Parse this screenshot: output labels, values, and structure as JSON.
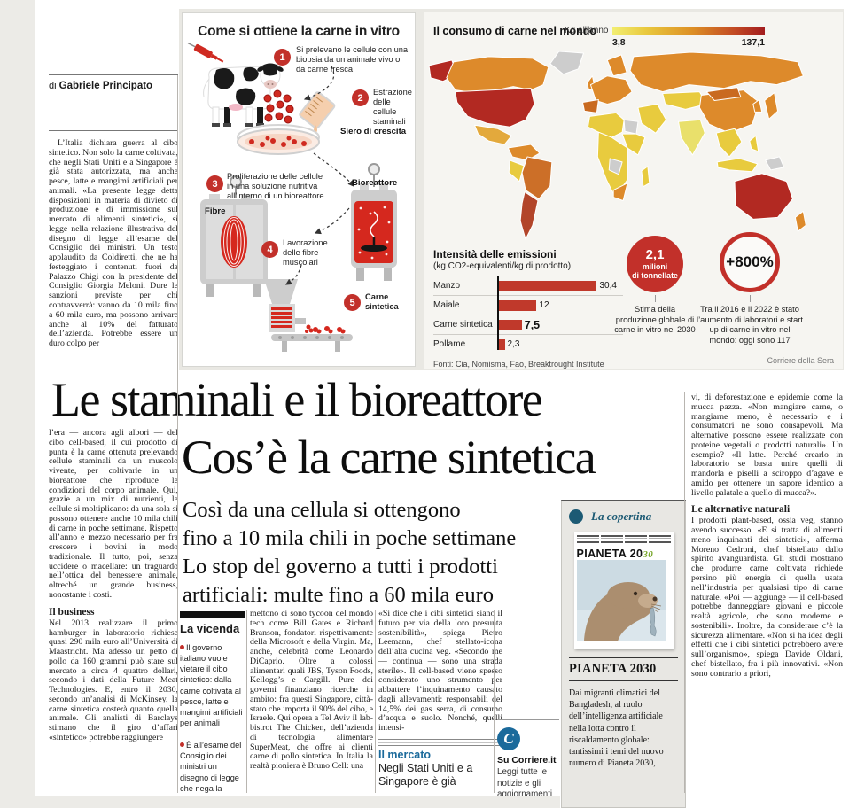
{
  "byline": {
    "prefix": "di ",
    "author": "Gabriele Principato"
  },
  "headline": {
    "line1": "Le staminali e il bioreattore",
    "line2": "Cos’è la carne sintetica"
  },
  "subhead": {
    "lines": [
      "Così da una cellula si ottengono",
      "fino a 10 mila chili in poche settimane",
      "Lo stop del governo a tutti i prodotti",
      "artificiali: multe fino a 60 mila euro"
    ]
  },
  "lead": {
    "text": "L’Italia dichiara guerra al cibo sintetico. Non solo la carne coltivata, che negli Stati Uniti e a Singapore è già stata autorizzata, ma anche pesce, latte e mangimi artificiali per animali. «La presente legge detta disposizioni in materia di divieto di produzione e di immissione sul mercato di alimenti sintetici», si legge nella relazione illustrativa del disegno di legge all’esame del Consiglio dei ministri. Un testo applaudito da Coldiretti, che ne ha festeggiato i contenuti fuori da Palazzo Chigi con la presidente del Consiglio Giorgia Meloni. Dure le sanzioni previste per chi contravverrà: vanno da 10 mila fino a 60 mila euro, ma possono arrivare anche al 10% del fatturato dell’azienda. Potrebbe essere un duro colpo per"
  },
  "columns": {
    "col1b": "l’era — ancora agli albori — del cibo cell-based, il cui prodotto di punta è la carne ottenuta prelevando cellule staminali da un muscolo vivente, per coltivarle in un bioreattore che riproduce le condizioni del corpo animale. Qui, grazie a un mix di nutrienti, le cellule si moltiplicano: da una sola si possono ottenere anche 10 mila chili di carne in poche settimane. Rispetto all’anno e mezzo necessario per fra crescere i bovini in modo tradizionale. Il tutto, poi, senza uccidere o macellare: un traguardo nell’ottica del benessere animale, oltreché un grande business, nonostante i costi.",
    "business_heading": "Il business",
    "business_text": "Nel 2013 realizzare il primo hamburger in laboratorio richiese quasi 290 mila euro all’Università di Maastricht. Ma adesso un petto di pollo da 160 grammi può stare sul mercato a circa 4 quattro dollari, secondo i dati della Future Meat Technologies. E, entro il 2030, secondo un’analisi di McKinsey, la carne sintetica costerà quanto quella animale. Gli analisti di Barclays stimano che il giro d’affari «sintetico» potrebbe raggiungere",
    "col3": "mettono ci sono tycoon del mondo tech come Bill Gates e Richard Branson, fondatori rispettivamente della Microsoft e della Virgin. Ma, anche, celebrità come Leonardo DiCaprio. Oltre a colossi alimentari quali JBS, Tyson Foods, Kellogg’s e Cargill. Pure dei governi finanziano ricerche in ambito: fra questi Singapore, città-stato che importa il 90% del cibo, e Israele. Qui opera a Tel Aviv il lab-bistrot The Chicken, dell’azienda di tecnologia alimentare SuperMeat, che offre ai clienti carne di pollo sintetica. In Italia la realtà pioniera è Bruno Cell: una",
    "col4": "«Si dice che i cibi sintetici siano il futuro per via della loro presunta sostenibilità», spiega Pietro Leemann, chef stellato-icona dell’alta cucina veg. «Secondo me — continua — sono una strada sterile». Il cell-based viene spesso considerato uno strumento per abbattere l’inquinamento causato dagli allevamenti: responsabili del 14,5% dei gas serra, di consumo d’acqua e suolo. Nonché, quelli intensi-",
    "col7a": "vi, di deforestazione e epidemie come la mucca pazza. «Non mangiare carne, o mangiarne meno, è necessario e i consumatori ne sono consapevoli. Ma alternative possono essere realizzate con proteine vegetali o prodotti naturali». Un esempio? «Il latte. Perché crearlo in laboratorio se basta unire quelli di mandorla e piselli a sciroppo d’agave e amido per ottenere un sapore identico a livello palatale a quello di mucca?».",
    "alternatives_heading": "Le alternative naturali",
    "alternatives_text": "I prodotti plant-based, ossia veg, stanno avendo successo. «E si tratta di alimenti meno inquinanti dei sintetici», afferma Moreno Cedroni, chef bistellato dallo spirito avanguardista. Gli studi mostrano che produrre carne coltivata richiede persino più energia di quella usata nell’industria per qualsiasi tipo di carne naturale. «Poi — aggiunge — il cell-based potrebbe danneggiare giovani e piccole realtà agricole, che sono moderne e sostenibili». Inoltre, da considerare c’è la sicurezza alimentare. «Non si ha idea degli effetti che i cibi sintetici potrebbero avere sull’organismo», spiega Davide Oldani, chef bistellato, fra i più innovativi. «Non sono contrario a priori,"
  },
  "infographic": {
    "title": "Come si ottiene la carne in vitro",
    "steps": [
      {
        "n": "1",
        "text": "Si prelevano le cellule con una biopsia da un animale vivo o da carne fresca"
      },
      {
        "n": "2",
        "text": "Estrazione delle cellule staminali"
      },
      {
        "n": "3",
        "text": "Proliferazione delle cellule in una soluzione nutritiva all’interno di un bioreattore"
      },
      {
        "n": "4",
        "text": "Lavorazione delle fibre muscolari"
      },
      {
        "n": "5",
        "text": "Carne sintetica"
      }
    ],
    "labels": {
      "siero": "Siero di crescita",
      "bioreattore": "Bioreattore",
      "fibre": "Fibre"
    }
  },
  "map": {
    "title": "Il consumo di carne nel mondo",
    "legend_label": "Kg all’anno",
    "legend_min": "3,8",
    "legend_max": "137,1",
    "credit": "Corriere della Sera"
  },
  "chart_data": [
    {
      "type": "bar",
      "orientation": "horizontal",
      "title": "Intensità delle emissioni",
      "subtitle": "(kg CO2-equivalenti/kg di prodotto)",
      "categories": [
        "Manzo",
        "Maiale",
        "Carne sintetica",
        "Pollame"
      ],
      "values": [
        30.4,
        12,
        7.5,
        2.3
      ],
      "value_labels": [
        "30,4",
        "12",
        "7,5",
        "2,3"
      ],
      "xlim": [
        0,
        32
      ],
      "bar_color": "#c0392b",
      "source": "Fonti: Cia, Nomisma, Fao, Breaktrought Institute"
    },
    {
      "type": "heatmap",
      "subtype": "world-choropleth",
      "title": "Il consumo di carne nel mondo",
      "unit": "Kg all’anno",
      "range": [
        3.8,
        137.1
      ],
      "legend_colors": [
        "#f2ee72",
        "#a31d1f"
      ]
    }
  ],
  "stat_circles": [
    {
      "value": "2,1",
      "line2": "milioni",
      "line3": "di tonnellate",
      "caption": "Stima della produzione globale di carne in vitro nel 2030",
      "style": "filled"
    },
    {
      "value": "+800%",
      "caption": "Tra il 2016 e il 2022 è stato l’aumento di laboratori e start up di carne in vitro nel mondo: oggi sono 117",
      "style": "outline"
    }
  ],
  "vicenda": {
    "title": "La vicenda",
    "items": [
      "Il governo italiano vuole vietare il cibo sintetico: dalla carne coltivata al pesce, latte e mangimi artificiali per animali",
      "È all’esame del Consiglio dei ministri un disegno di legge che nega la produzione"
    ]
  },
  "mercato": {
    "heading": "Il mercato",
    "text": "Negli Stati Uniti e a Singapore è già"
  },
  "promo": {
    "logo_letter": "C",
    "title": "Su Corriere.it",
    "text": "Leggi tutte le notizie e gli aggiornamenti più importanti"
  },
  "copertina": {
    "label": "La copertina",
    "masthead_main": "PIANETA 20",
    "masthead_script": "30",
    "heading": "PIANETA 2030",
    "text": "Dai migranti climatici del Bangladesh, al ruolo dell’intelligenza artificiale nella lotta contro il riscaldamento globale: tantissimi i temi del nuovo numero di Pianeta 2030,"
  },
  "colors": {
    "accent_red": "#c2302a",
    "corriere_blue": "#1b6a9b",
    "teal": "#1c5a74"
  }
}
